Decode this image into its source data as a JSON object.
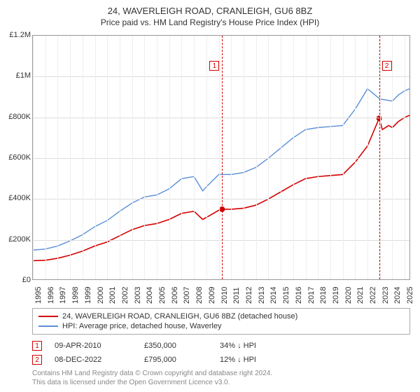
{
  "title": "24, WAVERLEIGH ROAD, CRANLEIGH, GU6 8BZ",
  "subtitle": "Price paid vs. HM Land Registry's House Price Index (HPI)",
  "chart": {
    "type": "line",
    "background_color": "#ffffff",
    "grid_color": "#dddddd",
    "border_color": "#999999",
    "xlim": [
      1995,
      2025.5
    ],
    "ylim": [
      0,
      1200000
    ],
    "yticks": [
      0,
      200000,
      400000,
      600000,
      800000,
      1000000,
      1200000
    ],
    "ytick_labels": [
      "£0",
      "£200K",
      "£400K",
      "£600K",
      "£800K",
      "£1M",
      "£1.2M"
    ],
    "xticks": [
      1995,
      1996,
      1997,
      1998,
      1999,
      2000,
      2001,
      2002,
      2003,
      2004,
      2005,
      2006,
      2007,
      2008,
      2009,
      2010,
      2011,
      2012,
      2013,
      2014,
      2015,
      2016,
      2017,
      2018,
      2019,
      2020,
      2021,
      2022,
      2023,
      2024,
      2025
    ],
    "label_fontsize": 11,
    "series": [
      {
        "name": "24, WAVERLEIGH ROAD, CRANLEIGH, GU6 8BZ (detached house)",
        "color": "#d40000",
        "line_width": 1.6,
        "data": [
          [
            1995,
            98000
          ],
          [
            1996,
            100000
          ],
          [
            1997,
            110000
          ],
          [
            1998,
            125000
          ],
          [
            1999,
            145000
          ],
          [
            2000,
            170000
          ],
          [
            2001,
            190000
          ],
          [
            2002,
            220000
          ],
          [
            2003,
            250000
          ],
          [
            2004,
            270000
          ],
          [
            2005,
            280000
          ],
          [
            2006,
            300000
          ],
          [
            2007,
            330000
          ],
          [
            2008,
            340000
          ],
          [
            2008.7,
            300000
          ],
          [
            2009,
            310000
          ],
          [
            2010,
            345000
          ],
          [
            2010.27,
            350000
          ],
          [
            2011,
            350000
          ],
          [
            2012,
            355000
          ],
          [
            2013,
            370000
          ],
          [
            2014,
            400000
          ],
          [
            2015,
            435000
          ],
          [
            2016,
            470000
          ],
          [
            2017,
            500000
          ],
          [
            2018,
            510000
          ],
          [
            2019,
            515000
          ],
          [
            2020,
            520000
          ],
          [
            2021,
            580000
          ],
          [
            2022,
            660000
          ],
          [
            2022.9,
            790000
          ],
          [
            2022.94,
            795000
          ],
          [
            2023.2,
            740000
          ],
          [
            2023.7,
            760000
          ],
          [
            2024,
            750000
          ],
          [
            2024.5,
            780000
          ],
          [
            2025,
            800000
          ],
          [
            2025.4,
            810000
          ]
        ]
      },
      {
        "name": "HPI: Average price, detached house, Waverley",
        "color": "#5b8fd6",
        "line_width": 1.4,
        "data": [
          [
            1995,
            150000
          ],
          [
            1996,
            155000
          ],
          [
            1997,
            170000
          ],
          [
            1998,
            195000
          ],
          [
            1999,
            225000
          ],
          [
            2000,
            265000
          ],
          [
            2001,
            295000
          ],
          [
            2002,
            340000
          ],
          [
            2003,
            380000
          ],
          [
            2004,
            410000
          ],
          [
            2005,
            420000
          ],
          [
            2006,
            450000
          ],
          [
            2007,
            500000
          ],
          [
            2008,
            510000
          ],
          [
            2008.7,
            440000
          ],
          [
            2009,
            460000
          ],
          [
            2010,
            520000
          ],
          [
            2011,
            520000
          ],
          [
            2012,
            530000
          ],
          [
            2013,
            555000
          ],
          [
            2014,
            600000
          ],
          [
            2015,
            650000
          ],
          [
            2016,
            700000
          ],
          [
            2017,
            740000
          ],
          [
            2018,
            750000
          ],
          [
            2019,
            755000
          ],
          [
            2020,
            760000
          ],
          [
            2021,
            840000
          ],
          [
            2022,
            940000
          ],
          [
            2023,
            890000
          ],
          [
            2024,
            880000
          ],
          [
            2024.5,
            910000
          ],
          [
            2025,
            930000
          ],
          [
            2025.4,
            940000
          ]
        ]
      }
    ],
    "sale_markers": [
      {
        "n": "1",
        "x": 2010.27,
        "y": 350000,
        "line_color": "#d40000",
        "box_y": 130000,
        "box_side": "left"
      },
      {
        "n": "2",
        "x": 2022.94,
        "y": 795000,
        "line_color": "#d40000",
        "box_y": 130000,
        "box_side": "right"
      }
    ],
    "marker_dot_color": "#d40000",
    "marker_dot_radius": 4
  },
  "legend": {
    "items": [
      {
        "color": "#d40000",
        "label": "24, WAVERLEIGH ROAD, CRANLEIGH, GU6 8BZ (detached house)"
      },
      {
        "color": "#5b8fd6",
        "label": "HPI: Average price, detached house, Waverley"
      }
    ]
  },
  "sales": [
    {
      "n": "1",
      "date": "09-APR-2010",
      "price": "£350,000",
      "diff": "34% ↓ HPI"
    },
    {
      "n": "2",
      "date": "08-DEC-2022",
      "price": "£795,000",
      "diff": "12% ↓ HPI"
    }
  ],
  "footer": {
    "line1": "Contains HM Land Registry data © Crown copyright and database right 2024.",
    "line2": "This data is licensed under the Open Government Licence v3.0."
  }
}
